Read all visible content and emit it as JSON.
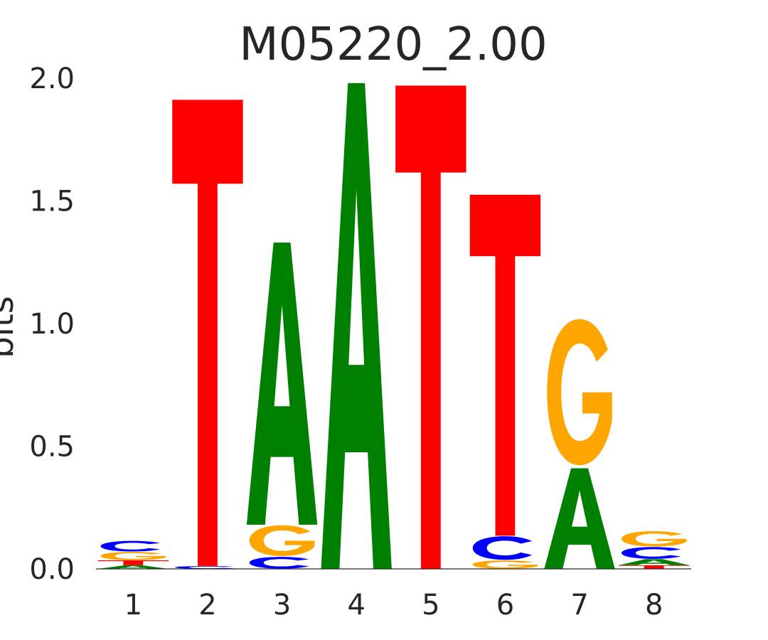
{
  "chart_data": {
    "type": "sequence-logo",
    "title": "M05220_2.00",
    "xlabel": "",
    "ylabel": "bits",
    "ylim": [
      0,
      2.0
    ],
    "yticks": [
      "0.0",
      "0.5",
      "1.0",
      "1.5",
      "2.0"
    ],
    "ytick_values": [
      0.0,
      0.5,
      1.0,
      1.5,
      2.0
    ],
    "positions": [
      "1",
      "2",
      "3",
      "4",
      "5",
      "6",
      "7",
      "8"
    ],
    "colors": {
      "A": "#008000",
      "C": "#0000ff",
      "G": "#ffa500",
      "T": "#ff0000"
    },
    "stacks": [
      [
        {
          "base": "A",
          "bits": 0.015
        },
        {
          "base": "T",
          "bits": 0.02
        },
        {
          "base": "G",
          "bits": 0.035
        },
        {
          "base": "C",
          "bits": 0.045
        }
      ],
      [
        {
          "base": "C",
          "bits": 0.012
        },
        {
          "base": "T",
          "bits": 1.9
        }
      ],
      [
        {
          "base": "C",
          "bits": 0.05
        },
        {
          "base": "G",
          "bits": 0.13
        },
        {
          "base": "A",
          "bits": 1.15
        }
      ],
      [
        {
          "base": "A",
          "bits": 1.98
        }
      ],
      [
        {
          "base": "T",
          "bits": 1.97
        }
      ],
      [
        {
          "base": "G",
          "bits": 0.035
        },
        {
          "base": "C",
          "bits": 0.1
        },
        {
          "base": "T",
          "bits": 1.39
        }
      ],
      [
        {
          "base": "A",
          "bits": 0.41
        },
        {
          "base": "G",
          "bits": 0.62
        }
      ],
      [
        {
          "base": "T",
          "bits": 0.015
        },
        {
          "base": "A",
          "bits": 0.025
        },
        {
          "base": "C",
          "bits": 0.05
        },
        {
          "base": "G",
          "bits": 0.065
        }
      ]
    ]
  }
}
